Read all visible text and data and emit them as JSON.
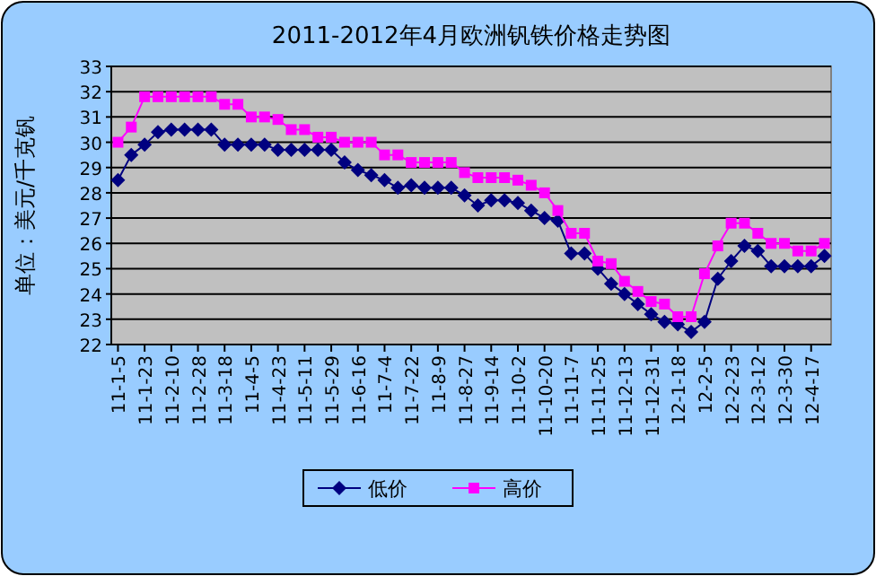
{
  "chart_data": {
    "type": "line",
    "title": "2011-2012年4月欧洲钒铁价格走势图",
    "ylabel": "单位：美元/千克钒",
    "categories": [
      "11-1-5",
      null,
      "11-1-23",
      null,
      "11-2-10",
      null,
      "11-2-28",
      null,
      "11-3-18",
      null,
      "11-4-5",
      null,
      "11-4-23",
      null,
      "11-5-11",
      null,
      "11-5-29",
      null,
      "11-6-16",
      null,
      "11-7-4",
      null,
      "11-7-22",
      null,
      "11-8-9",
      null,
      "11-8-27",
      null,
      "11-9-14",
      null,
      "11-10-2",
      null,
      "11-10-20",
      null,
      "11-11-7",
      null,
      "11-11-25",
      null,
      "11-12-13",
      null,
      "11-12-31",
      null,
      "12-1-18",
      null,
      "12-2-5",
      null,
      "12-2-23",
      null,
      "12-3-12",
      null,
      "12-3-30",
      null,
      "12-4-17",
      null
    ],
    "series": [
      {
        "name": "低价",
        "color": "#000080",
        "marker": "diamond",
        "values": [
          28.5,
          29.5,
          29.9,
          30.4,
          30.5,
          30.5,
          30.5,
          30.5,
          29.9,
          29.9,
          29.9,
          29.9,
          29.7,
          29.7,
          29.7,
          29.7,
          29.7,
          29.2,
          28.9,
          28.7,
          28.5,
          28.2,
          28.3,
          28.2,
          28.2,
          28.2,
          27.9,
          27.5,
          27.7,
          27.7,
          27.6,
          27.3,
          27.0,
          26.9,
          25.6,
          25.6,
          25.0,
          24.4,
          24.0,
          23.6,
          23.2,
          22.9,
          22.8,
          22.5,
          22.9,
          24.6,
          25.3,
          25.9,
          25.7,
          25.1,
          25.1,
          25.1,
          25.1,
          25.5
        ]
      },
      {
        "name": "高价",
        "color": "#ff00ff",
        "marker": "square",
        "values": [
          30.0,
          30.6,
          31.8,
          31.8,
          31.8,
          31.8,
          31.8,
          31.8,
          31.5,
          31.5,
          31.0,
          31.0,
          30.9,
          30.5,
          30.5,
          30.2,
          30.2,
          30.0,
          30.0,
          30.0,
          29.5,
          29.5,
          29.2,
          29.2,
          29.2,
          29.2,
          28.8,
          28.6,
          28.6,
          28.6,
          28.5,
          28.3,
          28.0,
          27.3,
          26.4,
          26.4,
          25.3,
          25.2,
          24.5,
          24.1,
          23.7,
          23.6,
          23.1,
          23.1,
          24.8,
          25.9,
          26.8,
          26.8,
          26.4,
          26.0,
          26.0,
          25.7,
          25.7,
          26.0
        ]
      }
    ],
    "ylim": [
      22,
      33
    ],
    "yticks": [
      22,
      23,
      24,
      25,
      26,
      27,
      28,
      29,
      30,
      31,
      32,
      33
    ],
    "grid": "y",
    "legend": "bottom"
  }
}
